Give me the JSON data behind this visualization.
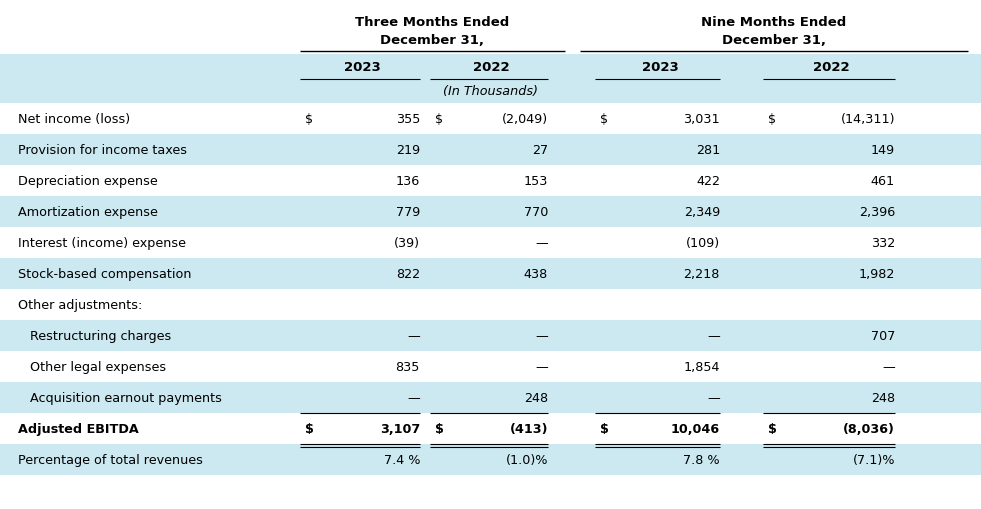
{
  "col_headers": [
    "2023",
    "2022",
    "2023",
    "2022"
  ],
  "subheader": "(In Thousands)",
  "rows": [
    {
      "label": "Net income (loss)",
      "indent": 0,
      "dollar_signs": true,
      "values": [
        "355",
        "(2,049)",
        "3,031",
        "(14,311)"
      ],
      "bold": false,
      "shaded": false,
      "border_top": false,
      "border_bottom": false,
      "double_bottom": false
    },
    {
      "label": "Provision for income taxes",
      "indent": 0,
      "dollar_signs": false,
      "values": [
        "219",
        "27",
        "281",
        "149"
      ],
      "bold": false,
      "shaded": true,
      "border_top": false,
      "border_bottom": false,
      "double_bottom": false
    },
    {
      "label": "Depreciation expense",
      "indent": 0,
      "dollar_signs": false,
      "values": [
        "136",
        "153",
        "422",
        "461"
      ],
      "bold": false,
      "shaded": false,
      "border_top": false,
      "border_bottom": false,
      "double_bottom": false
    },
    {
      "label": "Amortization expense",
      "indent": 0,
      "dollar_signs": false,
      "values": [
        "779",
        "770",
        "2,349",
        "2,396"
      ],
      "bold": false,
      "shaded": true,
      "border_top": false,
      "border_bottom": false,
      "double_bottom": false
    },
    {
      "label": "Interest (income) expense",
      "indent": 0,
      "dollar_signs": false,
      "values": [
        "(39)",
        "—",
        "(109)",
        "332"
      ],
      "bold": false,
      "shaded": false,
      "border_top": false,
      "border_bottom": false,
      "double_bottom": false
    },
    {
      "label": "Stock-based compensation",
      "indent": 0,
      "dollar_signs": false,
      "values": [
        "822",
        "438",
        "2,218",
        "1,982"
      ],
      "bold": false,
      "shaded": true,
      "border_top": false,
      "border_bottom": false,
      "double_bottom": false
    },
    {
      "label": "Other adjustments:",
      "indent": 0,
      "dollar_signs": false,
      "values": [
        "",
        "",
        "",
        ""
      ],
      "bold": false,
      "shaded": false,
      "border_top": false,
      "border_bottom": false,
      "double_bottom": false
    },
    {
      "label": "   Restructuring charges",
      "indent": 1,
      "dollar_signs": false,
      "values": [
        "—",
        "—",
        "—",
        "707"
      ],
      "bold": false,
      "shaded": true,
      "border_top": false,
      "border_bottom": false,
      "double_bottom": false
    },
    {
      "label": "   Other legal expenses",
      "indent": 1,
      "dollar_signs": false,
      "values": [
        "835",
        "—",
        "1,854",
        "—"
      ],
      "bold": false,
      "shaded": false,
      "border_top": false,
      "border_bottom": false,
      "double_bottom": false
    },
    {
      "label": "   Acquisition earnout payments",
      "indent": 1,
      "dollar_signs": false,
      "values": [
        "—",
        "248",
        "—",
        "248"
      ],
      "bold": false,
      "shaded": true,
      "border_top": false,
      "border_bottom": true,
      "double_bottom": false
    },
    {
      "label": "Adjusted EBITDA",
      "indent": 0,
      "dollar_signs": true,
      "values": [
        "3,107",
        "(413)",
        "10,046",
        "(8,036)"
      ],
      "bold": true,
      "shaded": false,
      "border_top": false,
      "border_bottom": true,
      "double_bottom": true
    },
    {
      "label": "Percentage of total revenues",
      "indent": 0,
      "dollar_signs": false,
      "values": [
        "7.4 %",
        "(1.0)%",
        "7.8 %",
        "(7.1)%"
      ],
      "bold": false,
      "shaded": true,
      "border_top": false,
      "border_bottom": false,
      "double_bottom": false
    }
  ],
  "colors": {
    "shaded_bg": "#cce8f0",
    "white_bg": "#ffffff",
    "text_color": "#000000",
    "border_color": "#000000"
  },
  "figsize": [
    9.81,
    5.1
  ],
  "dpi": 100
}
